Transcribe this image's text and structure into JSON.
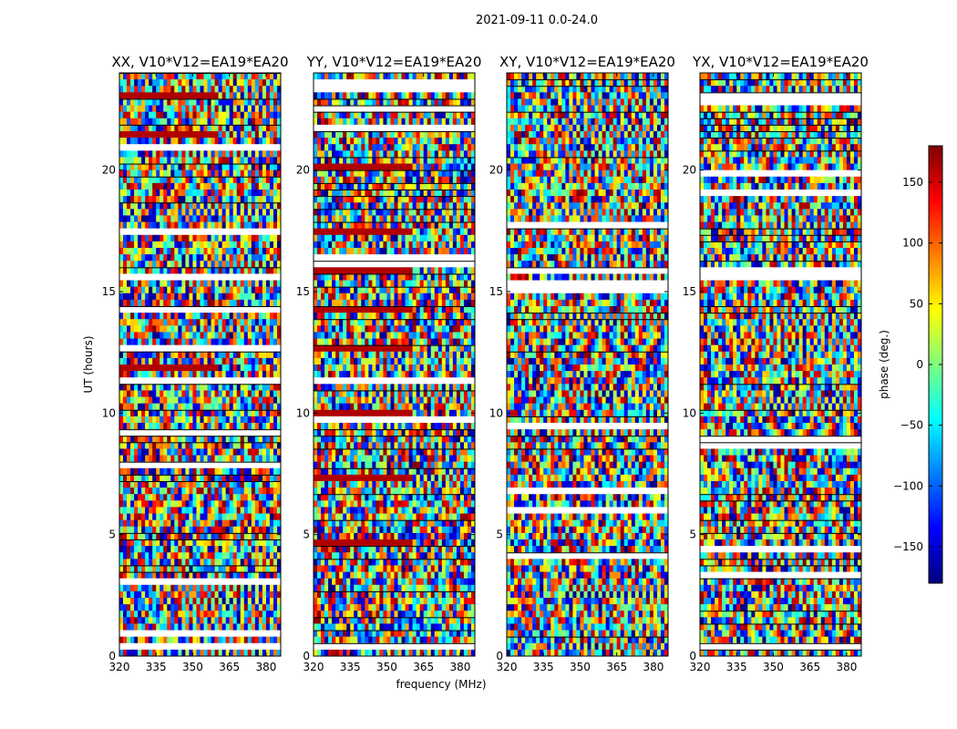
{
  "figure": {
    "suptitle": "2021-09-11 0.0-24.0",
    "xlabel": "frequency (MHz)",
    "ylabel": "UT (hours)"
  },
  "colorbar": {
    "label": "phase (deg.)",
    "range": [
      -180,
      180
    ],
    "ticks": [
      150,
      100,
      50,
      0,
      -50,
      -100,
      -150
    ],
    "tick_labels": [
      "150",
      "100",
      "50",
      "0",
      "−50",
      "−100",
      "−150"
    ],
    "colormap": [
      "#00007f",
      "#0000ff",
      "#007fff",
      "#00ffff",
      "#7fff7f",
      "#ffff00",
      "#ff7f00",
      "#ff0000",
      "#7f0000"
    ]
  },
  "chart_data": [
    {
      "type": "heatmap",
      "title": "XX, V10*V12=EA19*EA20",
      "x_range": [
        320,
        386
      ],
      "x_ticks": [
        320,
        335,
        350,
        365,
        380
      ],
      "y_range": [
        0,
        24
      ],
      "y_ticks": [
        0,
        5,
        10,
        15,
        20
      ],
      "y_tick_labels": [
        "0",
        "5",
        "10",
        "15",
        "20"
      ],
      "value": "phase (deg.)"
    },
    {
      "type": "heatmap",
      "title": "YY, V10*V12=EA19*EA20",
      "x_range": [
        320,
        386
      ],
      "x_ticks": [
        320,
        335,
        350,
        365,
        380
      ],
      "y_range": [
        0,
        24
      ],
      "y_ticks": [
        0,
        5,
        10,
        15,
        20
      ],
      "y_tick_labels": [
        "0",
        "5",
        "10",
        "15",
        "20"
      ],
      "value": "phase (deg.)"
    },
    {
      "type": "heatmap",
      "title": "XY, V10*V12=EA19*EA20",
      "x_range": [
        320,
        386
      ],
      "x_ticks": [
        320,
        335,
        350,
        365,
        380
      ],
      "y_range": [
        0,
        24
      ],
      "y_ticks": [
        0,
        5,
        10,
        15,
        20
      ],
      "y_tick_labels": [
        "0",
        "5",
        "10",
        "15",
        "20"
      ],
      "value": "phase (deg.)"
    },
    {
      "type": "heatmap",
      "title": "YX, V10*V12=EA19*EA20",
      "x_range": [
        320,
        386
      ],
      "x_ticks": [
        320,
        335,
        350,
        365,
        380
      ],
      "y_range": [
        0,
        24
      ],
      "y_ticks": [
        0,
        5,
        10,
        15,
        20
      ],
      "y_tick_labels": [
        "0",
        "5",
        "10",
        "15",
        "20"
      ],
      "value": "phase (deg.)"
    }
  ]
}
